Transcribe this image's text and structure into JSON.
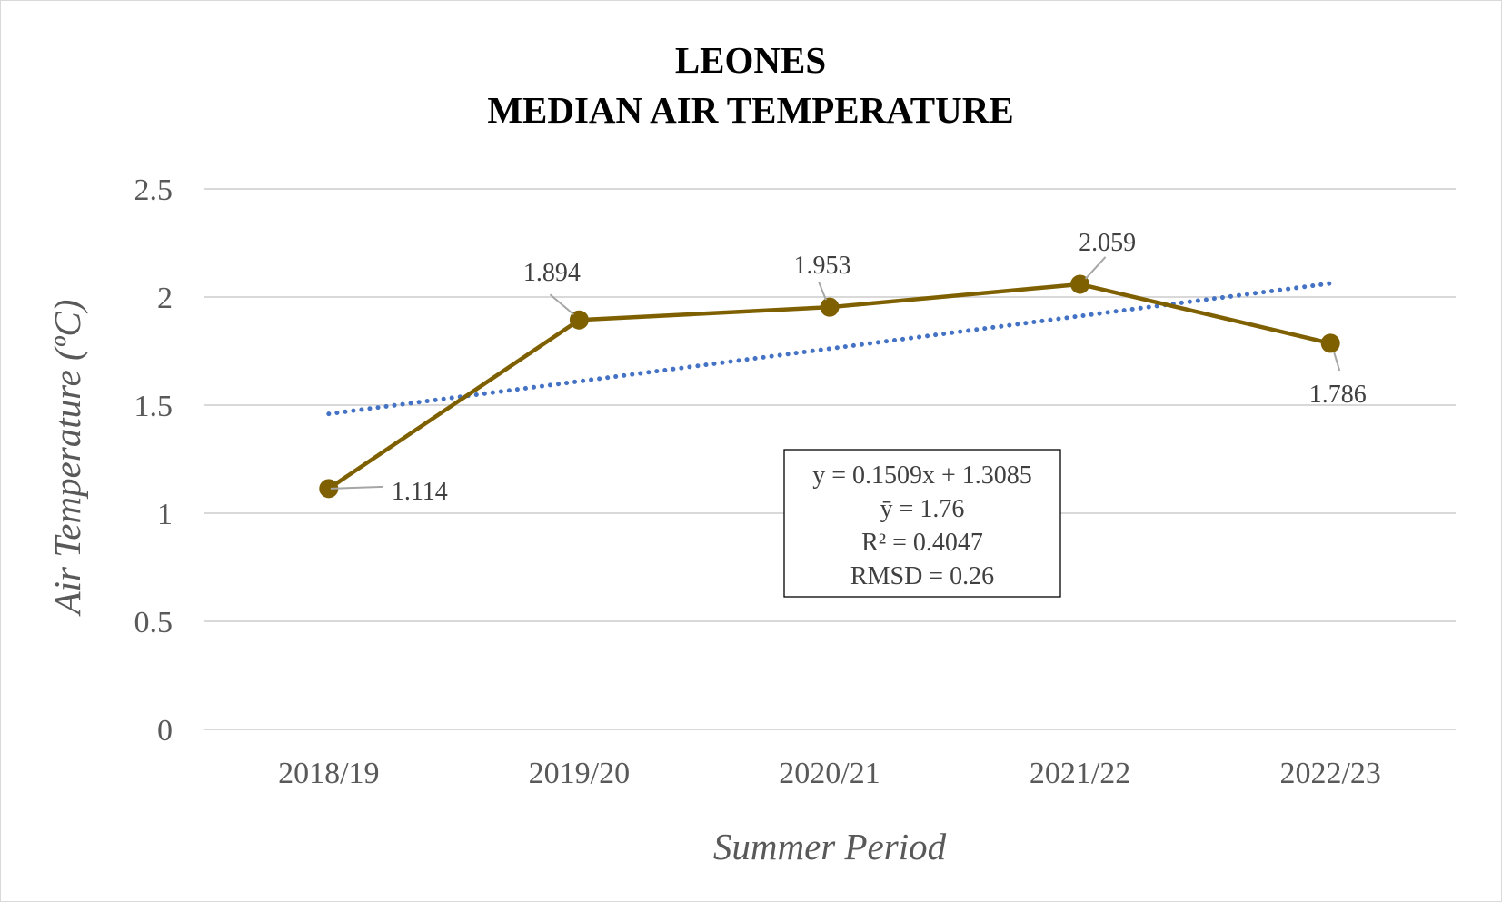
{
  "chart_data": {
    "type": "line",
    "title": [
      "LEONES",
      "MEDIAN AIR TEMPERATURE"
    ],
    "xlabel": "Summer Period",
    "ylabel": "Air Temperature (ºC)",
    "categories": [
      "2018/19",
      "2019/20",
      "2020/21",
      "2021/22",
      "2022/23"
    ],
    "series": [
      {
        "values": [
          1.114,
          1.894,
          1.953,
          2.059,
          1.786
        ],
        "color": "#7f6000"
      }
    ],
    "data_labels": [
      "1.114",
      "1.894",
      "1.953",
      "2.059",
      "1.786"
    ],
    "trendline": {
      "type": "linear",
      "slope": 0.1509,
      "intercept": 1.3085,
      "color": "#4472c4",
      "style": "dotted"
    },
    "ylim": [
      0,
      2.5
    ],
    "yticks": [
      "0",
      "0.5",
      "1",
      "1.5",
      "2",
      "2.5"
    ],
    "grid": true,
    "annotation": [
      "y = 0.1509x + 1.3085",
      "ȳ = 1.76",
      "R² = 0.4047",
      "RMSD = 0.26"
    ]
  }
}
